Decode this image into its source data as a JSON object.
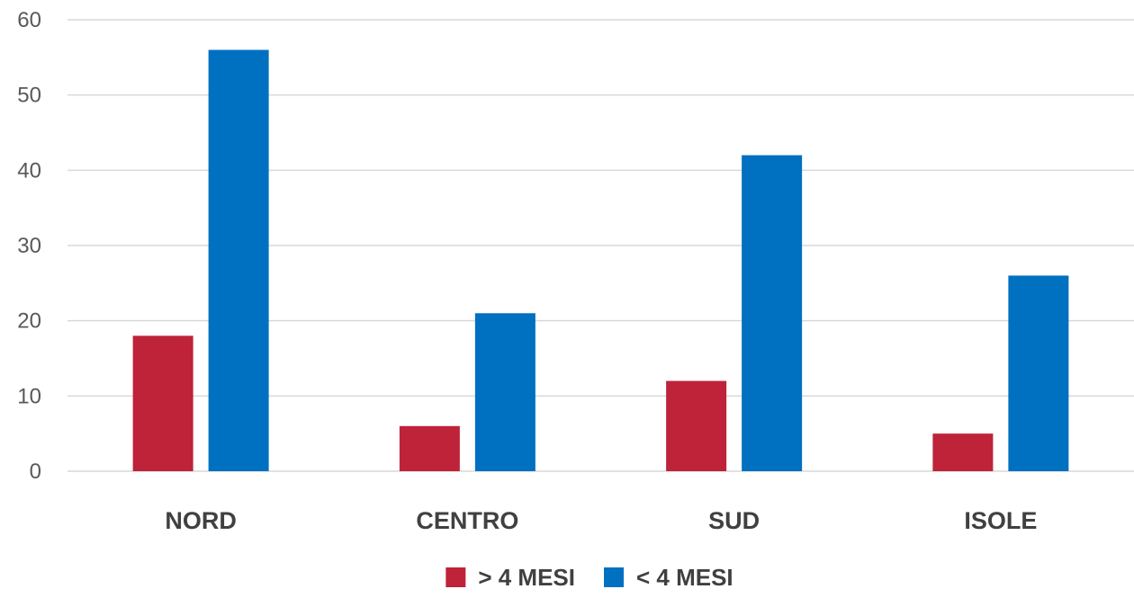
{
  "chart_data": {
    "type": "bar",
    "categories": [
      "NORD",
      "CENTRO",
      "SUD",
      "ISOLE"
    ],
    "series": [
      {
        "name": "> 4 MESI",
        "color": "#be2339",
        "values": [
          18,
          6,
          12,
          5
        ]
      },
      {
        "name": "< 4 MESI",
        "color": "#0070c0",
        "values": [
          56,
          21,
          42,
          26
        ]
      }
    ],
    "ylim": [
      0,
      60
    ],
    "yticks": [
      0,
      10,
      20,
      30,
      40,
      50,
      60
    ],
    "grid": true,
    "legend_position": "bottom"
  }
}
